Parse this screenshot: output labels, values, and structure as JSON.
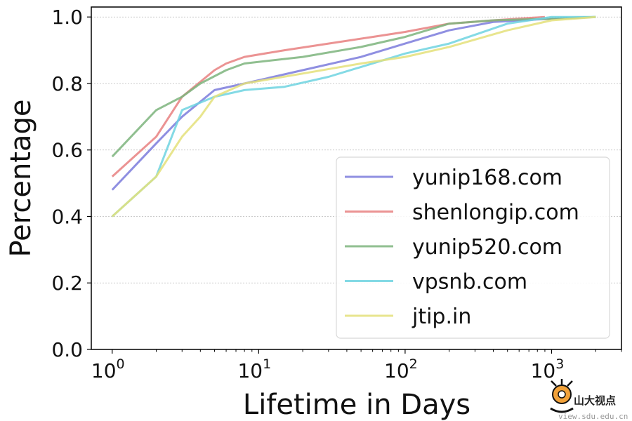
{
  "chart_data": {
    "type": "line",
    "xscale": "log",
    "xlabel": "Lifetime in Days",
    "ylabel": "Percentage",
    "xlim": [
      0.72,
      3000
    ],
    "ylim": [
      0.0,
      1.03
    ],
    "yticks": [
      "0.0",
      "0.2",
      "0.4",
      "0.6",
      "0.8",
      "1.0"
    ],
    "xticks": [
      {
        "base": "10",
        "exp": "0",
        "value": 1
      },
      {
        "base": "10",
        "exp": "1",
        "value": 10
      },
      {
        "base": "10",
        "exp": "2",
        "value": 100
      },
      {
        "base": "10",
        "exp": "3",
        "value": 1000
      }
    ],
    "grid": "horizontal-dotted",
    "legend_position": "lower-right",
    "series": [
      {
        "name": "yunip168.com",
        "color": "#7b7bdc",
        "x": [
          1,
          2,
          3,
          5,
          8,
          20,
          50,
          100,
          200,
          400,
          1000,
          2000
        ],
        "y": [
          0.48,
          0.62,
          0.7,
          0.78,
          0.8,
          0.84,
          0.88,
          0.92,
          0.96,
          0.985,
          0.995,
          1.0
        ]
      },
      {
        "name": "shenlongip.com",
        "color": "#e88080",
        "x": [
          1,
          2,
          3,
          5,
          6,
          8,
          15,
          30,
          60,
          100,
          200,
          400,
          900
        ],
        "y": [
          0.52,
          0.64,
          0.76,
          0.84,
          0.86,
          0.88,
          0.9,
          0.92,
          0.94,
          0.955,
          0.98,
          0.99,
          1.0
        ]
      },
      {
        "name": "yunip520.com",
        "color": "#7cb47c",
        "x": [
          1,
          2,
          3,
          4,
          6,
          8,
          20,
          50,
          100,
          200,
          400,
          1000,
          2000
        ],
        "y": [
          0.58,
          0.72,
          0.76,
          0.8,
          0.84,
          0.86,
          0.88,
          0.91,
          0.94,
          0.98,
          0.99,
          0.995,
          1.0
        ]
      },
      {
        "name": "vpsnb.com",
        "color": "#6fd4e0",
        "x": [
          1,
          2,
          3,
          5,
          8,
          15,
          30,
          100,
          200,
          500,
          1000,
          2000
        ],
        "y": [
          0.4,
          0.52,
          0.72,
          0.76,
          0.78,
          0.79,
          0.82,
          0.89,
          0.92,
          0.98,
          1.0,
          1.0
        ]
      },
      {
        "name": "jtip.in",
        "color": "#e4e07a",
        "x": [
          1,
          2,
          3,
          4,
          5,
          8,
          20,
          50,
          100,
          200,
          500,
          1000,
          2000
        ],
        "y": [
          0.4,
          0.52,
          0.64,
          0.7,
          0.76,
          0.8,
          0.83,
          0.86,
          0.88,
          0.91,
          0.96,
          0.99,
          1.0
        ]
      }
    ]
  },
  "watermark": {
    "name": "山大视点",
    "url": "view.sdu.edu.cn"
  }
}
